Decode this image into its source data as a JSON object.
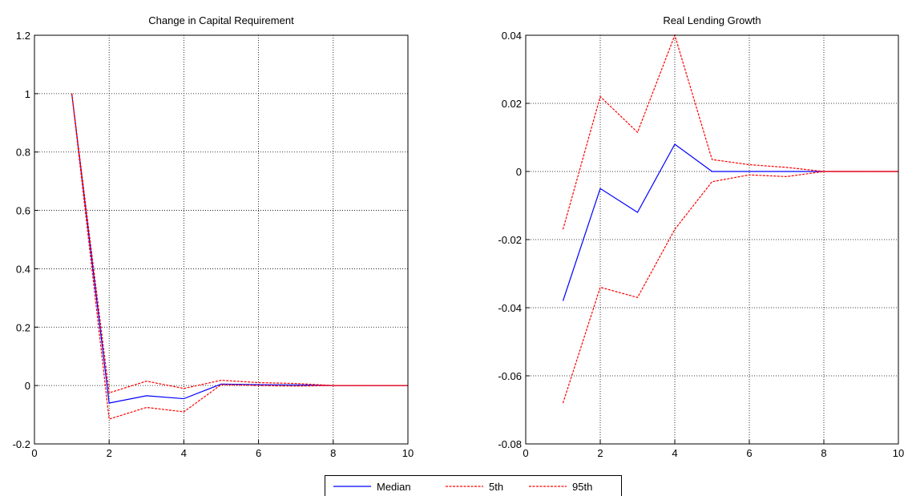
{
  "chart_data": [
    {
      "type": "line",
      "title": "Change in Capital Requirement",
      "x": [
        1,
        2,
        3,
        4,
        5,
        6,
        7,
        8,
        9,
        10
      ],
      "series": [
        {
          "name": "Median",
          "color": "#0000ff",
          "dash": false,
          "values": [
            1,
            -0.06,
            -0.035,
            -0.045,
            0.005,
            0.003,
            0.002,
            0,
            0,
            0
          ]
        },
        {
          "name": "5th",
          "color": "#ff0000",
          "dash": true,
          "values": [
            1,
            -0.115,
            -0.075,
            -0.09,
            0.003,
            0,
            -0.002,
            0,
            0,
            0
          ]
        },
        {
          "name": "95th",
          "color": "#ff0000",
          "dash": true,
          "values": [
            1,
            -0.025,
            0.015,
            -0.01,
            0.018,
            0.01,
            0.007,
            0,
            0,
            0
          ]
        }
      ],
      "xlim": [
        0,
        10
      ],
      "xticks": [
        0,
        2,
        4,
        6,
        8,
        10
      ],
      "ylim": [
        -0.2,
        1.2
      ],
      "yticks": [
        -0.2,
        0,
        0.2,
        0.4,
        0.6,
        0.8,
        1,
        1.2
      ],
      "grid": true
    },
    {
      "type": "line",
      "title": "Real Lending Growth",
      "x": [
        1,
        2,
        3,
        4,
        5,
        6,
        7,
        8,
        9,
        10
      ],
      "series": [
        {
          "color": "#0000ff",
          "dash": false,
          "values": [
            -0.038,
            -0.005,
            -0.012,
            0.008,
            0,
            0,
            0,
            0,
            0,
            0
          ]
        },
        {
          "color": "#ff0000",
          "dash": true,
          "values": [
            -0.068,
            -0.034,
            -0.037,
            -0.017,
            -0.003,
            -0.001,
            -0.0015,
            0,
            0,
            0
          ]
        },
        {
          "color": "#ff0000",
          "dash": true,
          "values": [
            -0.017,
            0.022,
            0.0115,
            0.04,
            0.0035,
            0.002,
            0.0012,
            0,
            0,
            0
          ]
        }
      ],
      "xlim": [
        0,
        10
      ],
      "xticks": [
        0,
        2,
        4,
        6,
        8,
        10
      ],
      "ylim": [
        -0.08,
        0.04
      ],
      "yticks": [
        -0.08,
        -0.06,
        -0.04,
        -0.02,
        0,
        0.02,
        0.04
      ],
      "grid": true
    }
  ]
}
